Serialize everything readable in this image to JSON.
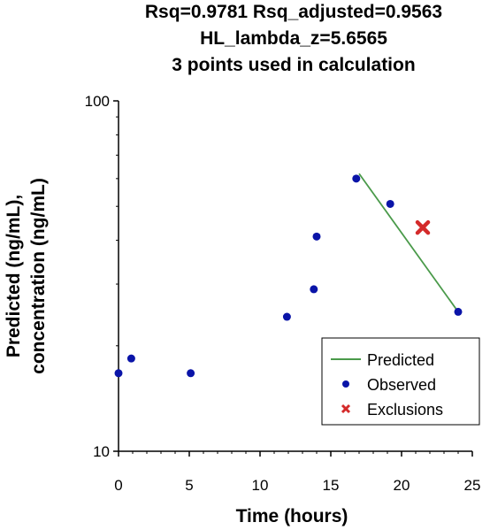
{
  "chart_data": {
    "type": "scatter",
    "title_lines": [
      "Rsq=0.9781 Rsq_adjusted=0.9563",
      "HL_lambda_z=5.6565",
      "3 points used in calculation"
    ],
    "xlabel": "Time (hours)",
    "ylabel_lines": [
      "Predicted (ng/mL),",
      "concentration (ng/mL)"
    ],
    "xlim": [
      0,
      25
    ],
    "ylim": [
      10,
      100
    ],
    "yscale": "log",
    "x_ticks": [
      0,
      5,
      10,
      15,
      20,
      25
    ],
    "y_ticks": [
      10,
      100
    ],
    "legend_position": "bottom-right",
    "series": [
      {
        "name": "Predicted",
        "kind": "line",
        "color": "#4a9a4a",
        "points": [
          [
            17,
            62
          ],
          [
            24,
            25
          ]
        ]
      },
      {
        "name": "Observed",
        "kind": "points",
        "color": "#0a14a8",
        "points": [
          [
            0,
            16.7
          ],
          [
            0.9,
            18.4
          ],
          [
            5.1,
            16.7
          ],
          [
            11.9,
            24.2
          ],
          [
            13.8,
            29.0
          ],
          [
            14.0,
            41.0
          ],
          [
            16.8,
            60.0
          ],
          [
            19.2,
            50.8
          ],
          [
            24.0,
            25.0
          ]
        ]
      },
      {
        "name": "Exclusions",
        "kind": "cross",
        "color": "#d42a2a",
        "points": [
          [
            21.5,
            43.5
          ]
        ]
      }
    ]
  }
}
